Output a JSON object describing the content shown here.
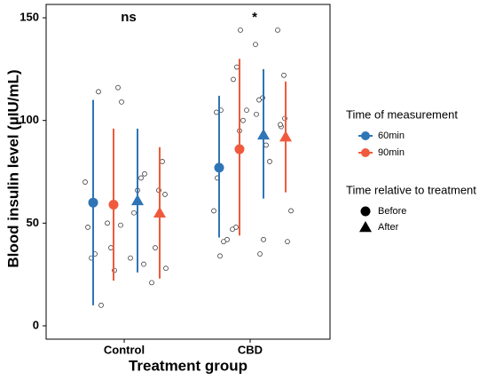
{
  "chart_data": {
    "type": "dotplot",
    "x_label": "Treatment group",
    "y_label": "Blood insulin level (µIU/mL)",
    "categories": [
      "Control",
      "CBD"
    ],
    "annotations": [
      "ns",
      "*"
    ],
    "ylim": [
      -6.5,
      156.5
    ],
    "yticks": [
      0,
      50,
      100,
      150
    ],
    "color_legend": {
      "title": "Time of measurement",
      "entries": [
        {
          "label": "60min",
          "color": "#2e75b6"
        },
        {
          "label": "90min",
          "color": "#f05a3c"
        }
      ]
    },
    "shape_legend": {
      "title": "Time relative to treatment",
      "entries": [
        {
          "label": "Before",
          "shape": "circle"
        },
        {
          "label": "After",
          "shape": "triangle"
        }
      ]
    },
    "series": [
      {
        "color": "#2e75b6",
        "shape": "circle",
        "mean": [
          60,
          77
        ],
        "lower": [
          10,
          43
        ],
        "upper": [
          110,
          112
        ],
        "points": [
          [
            70,
            114,
            35,
            33,
            48,
            10
          ],
          [
            105,
            72,
            56,
            42,
            41,
            34,
            104
          ]
        ]
      },
      {
        "color": "#f05a3c",
        "shape": "circle",
        "mean": [
          59,
          86
        ],
        "lower": [
          22,
          44
        ],
        "upper": [
          96,
          130
        ],
        "points": [
          [
            109,
            116,
            27,
            38,
            50,
            49
          ],
          [
            144,
            126,
            120,
            105,
            100,
            95,
            48,
            47
          ]
        ]
      },
      {
        "color": "#2e75b6",
        "shape": "triangle",
        "mean": [
          61,
          93
        ],
        "lower": [
          26,
          62
        ],
        "upper": [
          96,
          125
        ],
        "points": [
          [
            74,
            72,
            66,
            55,
            33,
            30
          ],
          [
            42,
            35,
            103,
            80,
            88,
            111,
            110,
            137
          ]
        ]
      },
      {
        "color": "#f05a3c",
        "shape": "triangle",
        "mean": [
          55,
          92
        ],
        "lower": [
          23,
          65
        ],
        "upper": [
          87,
          119
        ],
        "points": [
          [
            28,
            80,
            66,
            38,
            21,
            64
          ],
          [
            101,
            97,
            144,
            56,
            41,
            122,
            98
          ]
        ]
      }
    ]
  }
}
